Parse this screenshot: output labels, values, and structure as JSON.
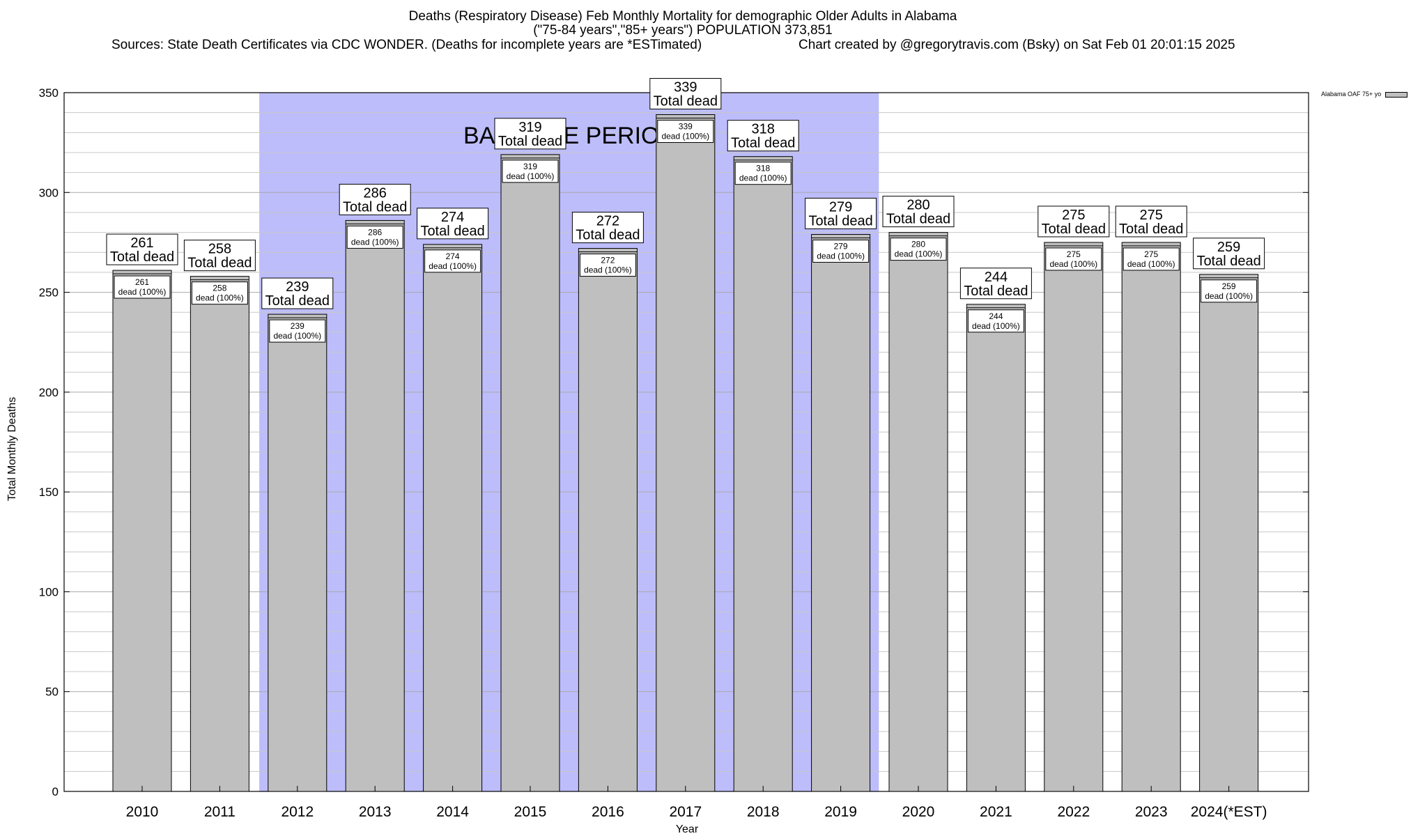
{
  "header": {
    "title_line1": "Deaths (Respiratory Disease) Feb Monthly Mortality for demographic Older Adults in Alabama",
    "title_line2": "(\"75-84 years\",\"85+ years\") POPULATION 373,851",
    "sources": "Sources: State Death Certificates via CDC WONDER. (Deaths for incomplete years are *ESTimated)",
    "credit": "Chart created by @gregorytravis.com (Bsky) on Sat Feb 01 20:01:15 2025"
  },
  "colors": {
    "bar_fill": "#bfbfbf",
    "baseline_fill": "#bdbdfb",
    "grid": "#c8c8c8"
  },
  "chart_data": {
    "type": "bar",
    "xlabel": "Year",
    "ylabel": "Total Monthly Deaths",
    "ylim": [
      0,
      350
    ],
    "yticks": [
      0,
      50,
      100,
      150,
      200,
      250,
      300,
      350
    ],
    "categories": [
      "2010",
      "2011",
      "2012",
      "2013",
      "2014",
      "2015",
      "2016",
      "2017",
      "2018",
      "2019",
      "2020",
      "2021",
      "2022",
      "2023",
      "2024(*EST)"
    ],
    "series": [
      {
        "name": "Alabama OAF 75+ yo",
        "values": [
          261,
          258,
          239,
          286,
          274,
          319,
          272,
          339,
          318,
          279,
          280,
          244,
          275,
          275,
          259
        ]
      }
    ],
    "top_label_suffix": "Total dead",
    "inner_label_suffix": "dead (100%)",
    "baseline": {
      "label": "BASELINE PERIOD",
      "start": "2012",
      "end": "2019"
    },
    "grid": true,
    "legend_position": "top-right"
  }
}
